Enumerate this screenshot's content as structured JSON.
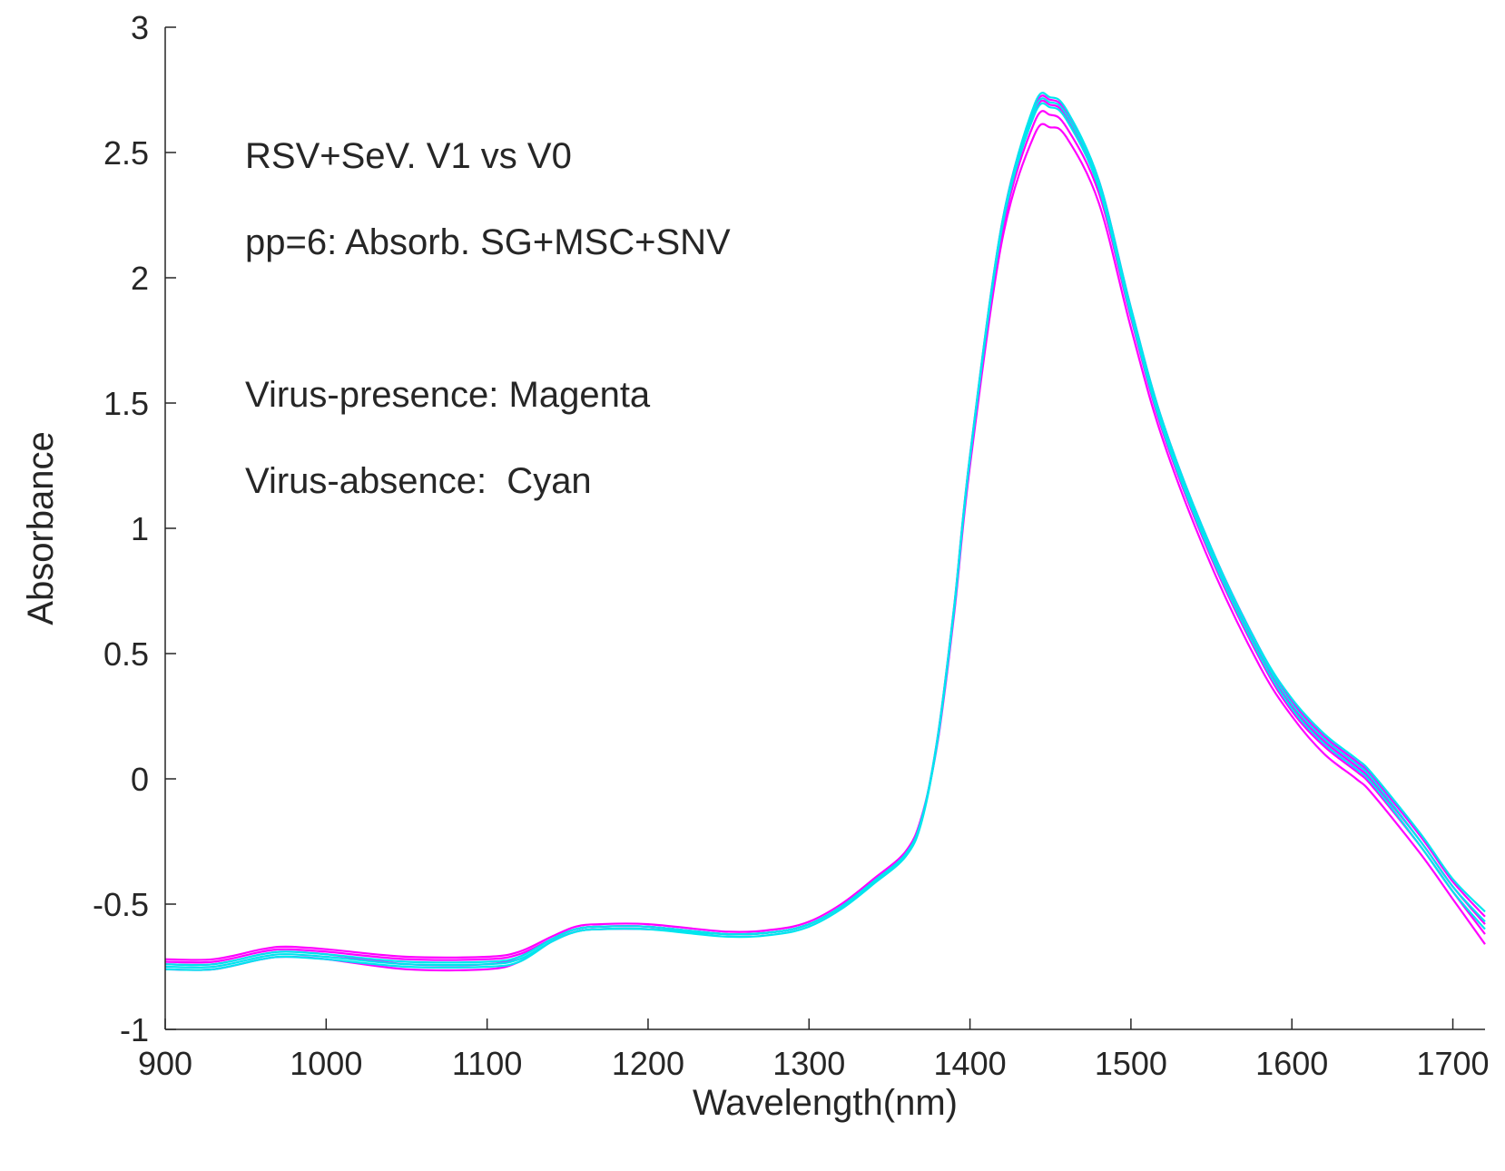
{
  "chart_data": {
    "type": "line",
    "title": "",
    "xlabel": "Wavelength(nm)",
    "ylabel": "Absorbance",
    "xlim": [
      900,
      1720
    ],
    "ylim": [
      -1,
      3
    ],
    "xticks": [
      900,
      1000,
      1100,
      1200,
      1300,
      1400,
      1500,
      1600,
      1700
    ],
    "yticks": [
      -1,
      -0.5,
      0,
      0.5,
      1,
      1.5,
      2,
      2.5,
      3
    ],
    "xtick_labels": [
      "900",
      "1000",
      "1100",
      "1200",
      "1300",
      "1400",
      "1500",
      "1600",
      "1700"
    ],
    "ytick_labels": [
      "-1",
      "-0.5",
      "0",
      "0.5",
      "1",
      "1.5",
      "2",
      "2.5",
      "3"
    ],
    "grid": false,
    "annotations": [
      "RSV+SeV. V1 vs V0",
      "pp=6: Absorb. SG+MSC+SNV",
      "Virus-presence: Magenta",
      "Virus-absence:  Cyan"
    ],
    "colors": {
      "presence": "#ff00ff",
      "absence": "#00e5ee",
      "axis": "#262626"
    },
    "x": [
      900,
      930,
      960,
      975,
      1000,
      1050,
      1100,
      1120,
      1140,
      1155,
      1170,
      1200,
      1250,
      1280,
      1300,
      1320,
      1340,
      1360,
      1370,
      1380,
      1390,
      1400,
      1420,
      1440,
      1450,
      1460,
      1480,
      1500,
      1520,
      1550,
      1580,
      1600,
      1620,
      1640,
      1650,
      1680,
      1700,
      1720
    ],
    "series": [
      {
        "name": "Virus-presence 1",
        "group": "presence",
        "values": [
          -0.72,
          -0.72,
          -0.68,
          -0.67,
          -0.68,
          -0.71,
          -0.71,
          -0.69,
          -0.63,
          -0.59,
          -0.58,
          -0.58,
          -0.61,
          -0.6,
          -0.57,
          -0.5,
          -0.4,
          -0.29,
          -0.15,
          0.15,
          0.65,
          1.25,
          2.15,
          2.57,
          2.6,
          2.56,
          2.3,
          1.8,
          1.35,
          0.85,
          0.45,
          0.25,
          0.1,
          0.0,
          -0.06,
          -0.3,
          -0.48,
          -0.66
        ]
      },
      {
        "name": "Virus-presence 2",
        "group": "presence",
        "values": [
          -0.73,
          -0.73,
          -0.69,
          -0.68,
          -0.69,
          -0.72,
          -0.72,
          -0.7,
          -0.64,
          -0.6,
          -0.59,
          -0.59,
          -0.62,
          -0.61,
          -0.58,
          -0.51,
          -0.41,
          -0.3,
          -0.16,
          0.16,
          0.67,
          1.27,
          2.18,
          2.62,
          2.65,
          2.6,
          2.34,
          1.84,
          1.38,
          0.88,
          0.48,
          0.27,
          0.13,
          0.03,
          -0.03,
          -0.27,
          -0.45,
          -0.62
        ]
      },
      {
        "name": "Virus-presence 3",
        "group": "presence",
        "values": [
          -0.74,
          -0.74,
          -0.7,
          -0.69,
          -0.7,
          -0.74,
          -0.74,
          -0.71,
          -0.64,
          -0.6,
          -0.59,
          -0.59,
          -0.62,
          -0.61,
          -0.58,
          -0.51,
          -0.41,
          -0.3,
          -0.16,
          0.16,
          0.67,
          1.28,
          2.2,
          2.66,
          2.69,
          2.64,
          2.37,
          1.86,
          1.4,
          0.9,
          0.5,
          0.29,
          0.15,
          0.05,
          -0.01,
          -0.25,
          -0.43,
          -0.58
        ]
      },
      {
        "name": "Virus-presence 4",
        "group": "presence",
        "values": [
          -0.76,
          -0.76,
          -0.72,
          -0.71,
          -0.72,
          -0.76,
          -0.76,
          -0.73,
          -0.65,
          -0.61,
          -0.6,
          -0.6,
          -0.62,
          -0.61,
          -0.58,
          -0.51,
          -0.41,
          -0.3,
          -0.16,
          0.17,
          0.68,
          1.29,
          2.22,
          2.68,
          2.71,
          2.66,
          2.39,
          1.88,
          1.42,
          0.92,
          0.52,
          0.31,
          0.17,
          0.07,
          0.01,
          -0.23,
          -0.41,
          -0.55
        ]
      },
      {
        "name": "Virus-absence 1",
        "group": "absence",
        "values": [
          -0.74,
          -0.74,
          -0.7,
          -0.69,
          -0.7,
          -0.73,
          -0.73,
          -0.71,
          -0.64,
          -0.6,
          -0.59,
          -0.59,
          -0.62,
          -0.61,
          -0.58,
          -0.51,
          -0.41,
          -0.3,
          -0.16,
          0.16,
          0.67,
          1.28,
          2.2,
          2.65,
          2.68,
          2.63,
          2.36,
          1.85,
          1.39,
          0.89,
          0.49,
          0.28,
          0.14,
          0.04,
          -0.02,
          -0.27,
          -0.45,
          -0.6
        ]
      },
      {
        "name": "Virus-absence 2",
        "group": "absence",
        "values": [
          -0.75,
          -0.75,
          -0.71,
          -0.7,
          -0.71,
          -0.74,
          -0.74,
          -0.72,
          -0.65,
          -0.61,
          -0.6,
          -0.6,
          -0.62,
          -0.61,
          -0.58,
          -0.51,
          -0.41,
          -0.3,
          -0.16,
          0.17,
          0.68,
          1.29,
          2.22,
          2.67,
          2.7,
          2.65,
          2.38,
          1.87,
          1.41,
          0.91,
          0.51,
          0.3,
          0.16,
          0.06,
          0.0,
          -0.25,
          -0.43,
          -0.57
        ]
      },
      {
        "name": "Virus-absence 3",
        "group": "absence",
        "values": [
          -0.76,
          -0.76,
          -0.72,
          -0.71,
          -0.72,
          -0.75,
          -0.75,
          -0.73,
          -0.65,
          -0.61,
          -0.6,
          -0.6,
          -0.63,
          -0.62,
          -0.59,
          -0.52,
          -0.42,
          -0.31,
          -0.17,
          0.16,
          0.67,
          1.28,
          2.21,
          2.69,
          2.72,
          2.67,
          2.39,
          1.88,
          1.42,
          0.92,
          0.52,
          0.32,
          0.18,
          0.08,
          0.02,
          -0.22,
          -0.4,
          -0.53
        ]
      }
    ]
  }
}
